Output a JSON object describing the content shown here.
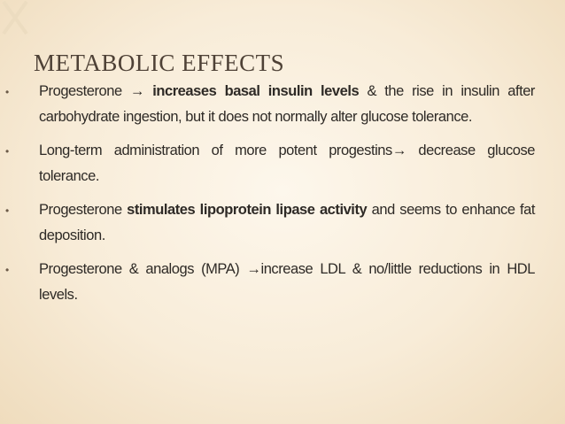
{
  "title": "METABOLIC EFFECTS",
  "bullet_marker": "•",
  "items": [
    {
      "runs": [
        {
          "text": "Progesterone → ",
          "bold": false
        },
        {
          "text": "increases basal insulin levels",
          "bold": true
        },
        {
          "text": " & the rise in insulin after carbohydrate ingestion, but it does not normally alter glucose tolerance.",
          "bold": false
        }
      ]
    },
    {
      "runs": [
        {
          "text": "Long-term administration of more potent progestins→ decrease glucose tolerance.",
          "bold": false
        }
      ]
    },
    {
      "runs": [
        {
          "text": "Progesterone ",
          "bold": false
        },
        {
          "text": "stimulates lipoprotein lipase activity",
          "bold": true
        },
        {
          "text": " and seems to enhance fat deposition.",
          "bold": false
        }
      ]
    },
    {
      "runs": [
        {
          "text": " Progesterone & analogs (MPA) →increase LDL & no/little reductions in HDL levels.",
          "bold": false
        }
      ]
    }
  ]
}
